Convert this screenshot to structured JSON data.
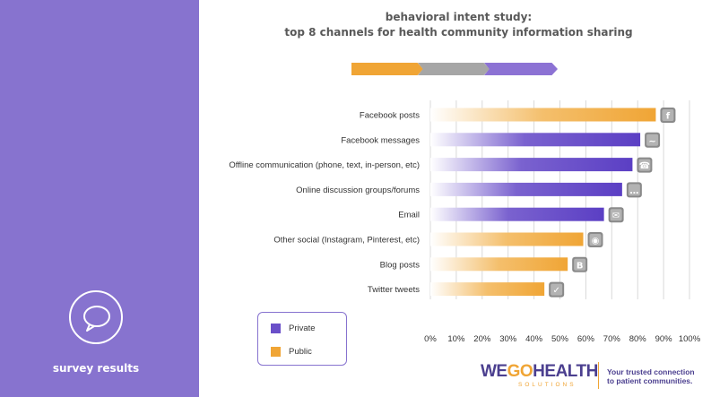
{
  "sidebar": {
    "label": "survey results",
    "icon": "speech-bubble-icon"
  },
  "header": {
    "title_line1": "behavioral intent study:",
    "title_line2": "top 8 channels for health community information sharing"
  },
  "colors": {
    "sidebar": "#8773cf",
    "private": "#6a4fc9",
    "public": "#f0a535",
    "neutral": "#a6a6a6"
  },
  "legend": {
    "private_label": "Private",
    "public_label": "Public"
  },
  "chart_data": {
    "type": "bar",
    "orientation": "horizontal",
    "categories": [
      "Facebook posts",
      "Facebook messages",
      "Offline communication (phone, text, in-person, etc)",
      "Online discussion groups/forums",
      "Email",
      "Other social (Instagram, Pinterest, etc)",
      "Blog posts",
      "Twitter tweets"
    ],
    "values": [
      87,
      81,
      78,
      74,
      67,
      59,
      53,
      44
    ],
    "types": [
      "Public",
      "Private",
      "Private",
      "Private",
      "Private",
      "Public",
      "Public",
      "Public"
    ],
    "icons": [
      "facebook-icon",
      "messenger-icon",
      "phone-icon",
      "chat-bubbles-icon",
      "email-icon",
      "instagram-icon",
      "blogger-icon",
      "twitter-icon"
    ],
    "xlim": [
      0,
      100
    ],
    "ticks": [
      "0%",
      "10%",
      "20%",
      "30%",
      "40%",
      "50%",
      "60%",
      "70%",
      "80%",
      "90%",
      "100%"
    ],
    "grid": true,
    "legend_position": "bottom-left"
  },
  "footer": {
    "logo_we": "WE",
    "logo_go": "GO",
    "logo_health": "HEALTH",
    "logo_solutions": "SOLUTIONS",
    "tagline_line1": "Your trusted connection",
    "tagline_line2": "to patient communities."
  }
}
